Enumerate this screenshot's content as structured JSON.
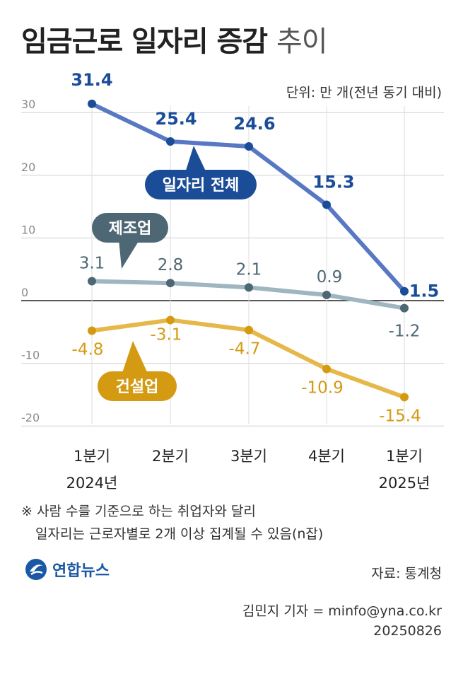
{
  "title_bold": "임금근로 일자리 증감",
  "title_light": "추이",
  "unit": "단위: 만 개(전년 동기 대비)",
  "chart_data": {
    "type": "line",
    "categories": [
      "1분기",
      "2분기",
      "3분기",
      "4분기",
      "1분기"
    ],
    "year_labels": [
      "2024년",
      "",
      "",
      "",
      "2025년"
    ],
    "ylim": [
      -25,
      35
    ],
    "yticks": [
      30,
      20,
      10,
      0,
      -10,
      -20
    ],
    "grid": true,
    "series": [
      {
        "name": "일자리 전체",
        "values": [
          31.4,
          25.4,
          24.6,
          15.3,
          1.5
        ],
        "labels": [
          "31.4",
          "25.4",
          "24.6",
          "15.3",
          "1.5"
        ],
        "color": "#5878c4",
        "dot": "#1a4c98",
        "text": "#1a4c98",
        "badge": "#1a4c98"
      },
      {
        "name": "제조업",
        "values": [
          3.1,
          2.8,
          2.1,
          0.9,
          -1.2
        ],
        "labels": [
          "3.1",
          "2.8",
          "2.1",
          "0.9",
          "-1.2"
        ],
        "color": "#9fb5c0",
        "dot": "#4d6874",
        "text": "#4d6874",
        "badge": "#4d6874"
      },
      {
        "name": "건설업",
        "values": [
          -4.8,
          -3.1,
          -4.7,
          -10.9,
          -15.4
        ],
        "labels": [
          "-4.8",
          "-3.1",
          "-4.7",
          "-10.9",
          "-15.4"
        ],
        "color": "#e6b84a",
        "dot": "#d49a12",
        "text": "#d49a12",
        "badge": "#d49a12"
      }
    ]
  },
  "note_line1": "※ 사람 수를 기준으로 하는 취업자와 달리",
  "note_line2": "일자리는 근로자별로 2개 이상 집계될 수 있음(n잡)",
  "logo_text": "연합뉴스",
  "source": "자료: 통계청",
  "credit_line1": "김민지 기자 = minfo@yna.co.kr",
  "credit_line2": "20250826"
}
